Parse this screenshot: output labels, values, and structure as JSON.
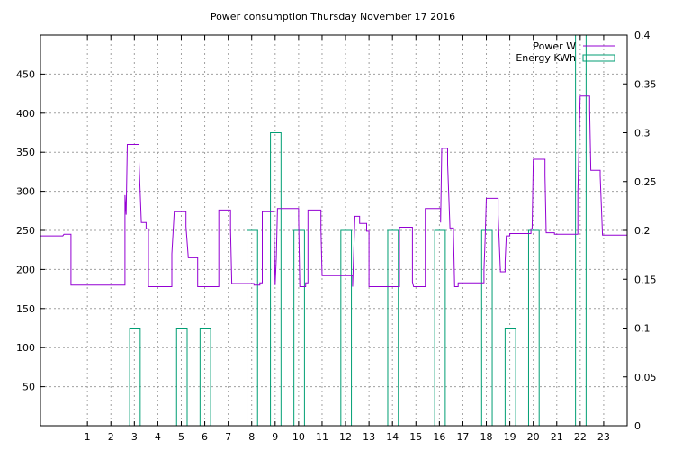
{
  "chart_data": {
    "type": "line",
    "title": "Power consumption Thursday November 17 2016",
    "xlim": [
      -1,
      24
    ],
    "x_ticks": [
      1,
      2,
      3,
      4,
      5,
      6,
      7,
      8,
      9,
      10,
      11,
      12,
      13,
      14,
      15,
      16,
      17,
      18,
      19,
      20,
      21,
      22,
      23
    ],
    "y_left": {
      "lim": [
        0,
        500
      ],
      "ticks": [
        50,
        100,
        150,
        200,
        250,
        300,
        350,
        400,
        450
      ]
    },
    "y_right": {
      "lim": [
        0,
        0.4
      ],
      "ticks": [
        "0",
        "0.05",
        "0.1",
        "0.15",
        "0.2",
        "0.25",
        "0.3",
        "0.35",
        "0.4"
      ]
    },
    "grid": true,
    "legend_position": "top-right",
    "series": [
      {
        "name": "Power W",
        "axis": "left",
        "color": "#9400d3",
        "style": "steps",
        "points": [
          [
            -1,
            243
          ],
          [
            -0.05,
            243
          ],
          [
            0,
            245
          ],
          [
            0.3,
            245
          ],
          [
            0.3,
            180
          ],
          [
            2.6,
            180
          ],
          [
            2.6,
            295
          ],
          [
            2.65,
            270
          ],
          [
            2.7,
            360
          ],
          [
            3.2,
            360
          ],
          [
            3.2,
            338
          ],
          [
            3.3,
            260
          ],
          [
            3.5,
            260
          ],
          [
            3.5,
            252
          ],
          [
            3.6,
            252
          ],
          [
            3.6,
            178
          ],
          [
            4.6,
            178
          ],
          [
            4.6,
            220
          ],
          [
            4.7,
            274
          ],
          [
            5.2,
            274
          ],
          [
            5.2,
            255
          ],
          [
            5.3,
            215
          ],
          [
            5.7,
            215
          ],
          [
            5.7,
            178
          ],
          [
            6.6,
            178
          ],
          [
            6.6,
            276
          ],
          [
            7.1,
            276
          ],
          [
            7.1,
            252
          ],
          [
            7.15,
            182
          ],
          [
            8.1,
            182
          ],
          [
            8.1,
            180
          ],
          [
            8.35,
            180
          ],
          [
            8.35,
            183
          ],
          [
            8.45,
            183
          ],
          [
            8.45,
            274
          ],
          [
            8.95,
            274
          ],
          [
            8.95,
            255
          ],
          [
            9.0,
            180
          ],
          [
            9.05,
            215
          ],
          [
            9.1,
            278
          ],
          [
            10.0,
            278
          ],
          [
            10.0,
            265
          ],
          [
            10.05,
            178
          ],
          [
            10.3,
            178
          ],
          [
            10.3,
            183
          ],
          [
            10.4,
            183
          ],
          [
            10.4,
            276
          ],
          [
            10.95,
            276
          ],
          [
            10.95,
            252
          ],
          [
            11.0,
            192
          ],
          [
            12.3,
            192
          ],
          [
            12.3,
            178
          ],
          [
            12.4,
            268
          ],
          [
            12.6,
            268
          ],
          [
            12.6,
            259
          ],
          [
            12.9,
            259
          ],
          [
            12.9,
            249
          ],
          [
            13.0,
            249
          ],
          [
            13.0,
            178
          ],
          [
            14.3,
            178
          ],
          [
            14.3,
            254
          ],
          [
            14.85,
            254
          ],
          [
            14.85,
            184
          ],
          [
            14.9,
            178
          ],
          [
            15.4,
            178
          ],
          [
            15.4,
            278
          ],
          [
            16.05,
            278
          ],
          [
            16.05,
            260
          ],
          [
            16.1,
            355
          ],
          [
            16.35,
            355
          ],
          [
            16.35,
            335
          ],
          [
            16.45,
            253
          ],
          [
            16.6,
            253
          ],
          [
            16.6,
            245
          ],
          [
            16.65,
            178
          ],
          [
            16.8,
            178
          ],
          [
            16.8,
            183
          ],
          [
            17.9,
            183
          ],
          [
            17.9,
            200
          ],
          [
            17.95,
            240
          ],
          [
            18.0,
            291
          ],
          [
            18.5,
            291
          ],
          [
            18.5,
            270
          ],
          [
            18.6,
            197
          ],
          [
            18.8,
            197
          ],
          [
            18.8,
            210
          ],
          [
            18.85,
            243
          ],
          [
            19.0,
            243
          ],
          [
            19.0,
            246
          ],
          [
            19.9,
            246
          ],
          [
            19.9,
            252
          ],
          [
            19.95,
            252
          ],
          [
            20.0,
            341
          ],
          [
            20.5,
            341
          ],
          [
            20.5,
            320
          ],
          [
            20.55,
            247
          ],
          [
            20.9,
            247
          ],
          [
            20.9,
            245
          ],
          [
            21.9,
            245
          ],
          [
            21.9,
            298
          ],
          [
            22.0,
            422
          ],
          [
            22.4,
            422
          ],
          [
            22.4,
            405
          ],
          [
            22.45,
            327
          ],
          [
            22.85,
            327
          ],
          [
            22.85,
            320
          ],
          [
            22.95,
            244
          ],
          [
            24,
            244
          ]
        ]
      },
      {
        "name": "Energy KWh",
        "axis": "right",
        "color": "#009e73",
        "style": "bars",
        "bars": [
          [
            2.8,
            3.25,
            0.1
          ],
          [
            4.8,
            5.25,
            0.1
          ],
          [
            5.8,
            6.25,
            0.1
          ],
          [
            7.8,
            8.25,
            0.2
          ],
          [
            8.8,
            9.25,
            0.3
          ],
          [
            9.8,
            10.25,
            0.2
          ],
          [
            11.8,
            12.25,
            0.2
          ],
          [
            13.8,
            14.25,
            0.2
          ],
          [
            15.8,
            16.25,
            0.2
          ],
          [
            17.8,
            18.25,
            0.2
          ],
          [
            18.8,
            19.25,
            0.1
          ],
          [
            19.8,
            20.25,
            0.2
          ],
          [
            21.8,
            22.25,
            0.4
          ]
        ]
      }
    ]
  }
}
